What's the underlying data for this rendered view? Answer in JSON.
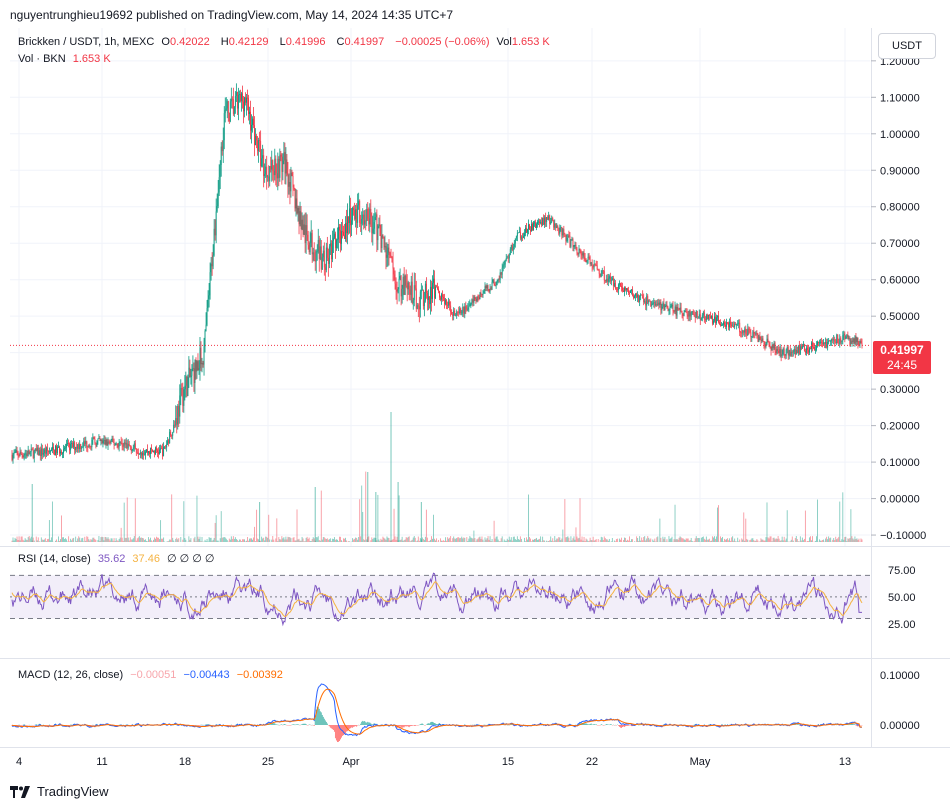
{
  "attribution": "nguyentrunghieu19692 published on TradingView.com, May 14, 2024 14:35 UTC+7",
  "legend": {
    "symbol": "Brickken / USDT, 1h, MEXC",
    "o_label": "O",
    "o_value": "0.42022",
    "h_label": "H",
    "h_value": "0.42129",
    "l_label": "L",
    "l_value": "0.41996",
    "c_label": "C",
    "c_value": "0.41997",
    "change": "−0.00025 (−0.06%)",
    "vol_label": "Vol",
    "vol_value": "1.653 K",
    "vol_row_label": "Vol · BKN",
    "vol_row_value": "1.653 K",
    "rsi_label": "RSI (14, close)",
    "rsi_value": "35.62",
    "rsi_ma": "37.46",
    "rsi_extra": "∅ ∅ ∅ ∅",
    "macd_label": "MACD (12, 26, close)",
    "macd_hist": "−0.00051",
    "macd_line": "−0.00443",
    "macd_signal": "−0.00392"
  },
  "unit_button": "USDT",
  "last_price": "0.41997",
  "countdown": "24:45",
  "footer_brand": "TradingView",
  "colors": {
    "up": "#089981",
    "down": "#f23645",
    "rsi": "#7e57c2",
    "rsi_ma": "#f5b342",
    "macd": "#2962ff",
    "signal": "#ff6d00"
  },
  "chart_data": {
    "type": "candlestick",
    "title": "Brickken / USDT, 1h, MEXC",
    "ylim": [
      -0.13,
      1.29
    ],
    "y_ticks": [
      "1.20000",
      "1.10000",
      "1.00000",
      "0.90000",
      "0.80000",
      "0.70000",
      "0.60000",
      "0.50000",
      "0.30000",
      "0.20000",
      "0.10000",
      "0.00000",
      "−0.10000"
    ],
    "y_tick_values": [
      1.2,
      1.1,
      1.0,
      0.9,
      0.8,
      0.7,
      0.6,
      0.5,
      0.3,
      0.2,
      0.1,
      0.0,
      -0.1
    ],
    "x_ticks": [
      "4",
      "11",
      "18",
      "25",
      "Apr",
      "15",
      "22",
      "May",
      "13"
    ],
    "close_path_x_index": [
      0,
      40,
      80,
      110,
      130,
      145,
      150,
      160,
      170,
      190,
      210,
      230,
      250,
      270,
      290,
      310,
      330,
      345,
      360,
      380,
      400,
      420,
      440,
      460,
      480,
      500,
      530,
      560,
      590,
      620,
      650,
      680,
      710,
      740,
      760,
      780,
      800,
      820,
      836,
      841
    ],
    "close_path_values": [
      0.12,
      0.13,
      0.155,
      0.15,
      0.13,
      0.13,
      0.13,
      0.2,
      0.3,
      0.4,
      1.05,
      1.1,
      0.9,
      0.92,
      0.72,
      0.65,
      0.75,
      0.79,
      0.75,
      0.6,
      0.55,
      0.57,
      0.5,
      0.55,
      0.6,
      0.72,
      0.77,
      0.68,
      0.6,
      0.55,
      0.52,
      0.5,
      0.48,
      0.44,
      0.4,
      0.41,
      0.42,
      0.44,
      0.43,
      0.42
    ],
    "rsi": {
      "ylim": [
        0,
        100
      ],
      "ticks": [
        "75.00",
        "50.00",
        "25.00"
      ],
      "tick_values": [
        75,
        50,
        25
      ],
      "upper": 70,
      "lower": 30,
      "last": 35.62,
      "ma_last": 37.46
    },
    "macd": {
      "ylim": [
        -0.04,
        0.12
      ],
      "ticks": [
        "0.10000",
        "0.00000"
      ],
      "tick_values": [
        0.1,
        0.0
      ],
      "macd_last": -0.00443,
      "signal_last": -0.00392,
      "hist_last": -0.00051
    }
  }
}
